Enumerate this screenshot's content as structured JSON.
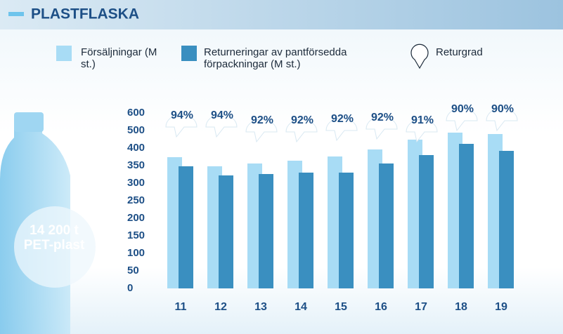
{
  "chart_data": {
    "type": "bar",
    "title": "PLASTFLASKA",
    "categories": [
      "11",
      "12",
      "13",
      "14",
      "15",
      "16",
      "17",
      "18",
      "19"
    ],
    "series": [
      {
        "name": "Försäljningar (M st.)",
        "color": "#a8dcf5",
        "values": [
          374,
          348,
          356,
          364,
          376,
          396,
          448,
          488,
          480
        ]
      },
      {
        "name": "Returneringar av pantförsedda förpackningar (M st.)",
        "color": "#3a8fc0",
        "values": [
          348,
          322,
          326,
          330,
          330,
          356,
          380,
          424,
          392
        ]
      }
    ],
    "rate": {
      "name": "Returgrad",
      "values": [
        94,
        94,
        92,
        92,
        92,
        92,
        91,
        90,
        90
      ],
      "value_labels": [
        "94%",
        "94%",
        "92%",
        "92%",
        "92%",
        "92%",
        "91%",
        "90%",
        "90%"
      ]
    },
    "ylim": [
      0,
      600
    ],
    "yticks": [
      0,
      50,
      100,
      150,
      200,
      250,
      300,
      350,
      400,
      500,
      600
    ],
    "annotation": "14 200 t PET-plast"
  }
}
